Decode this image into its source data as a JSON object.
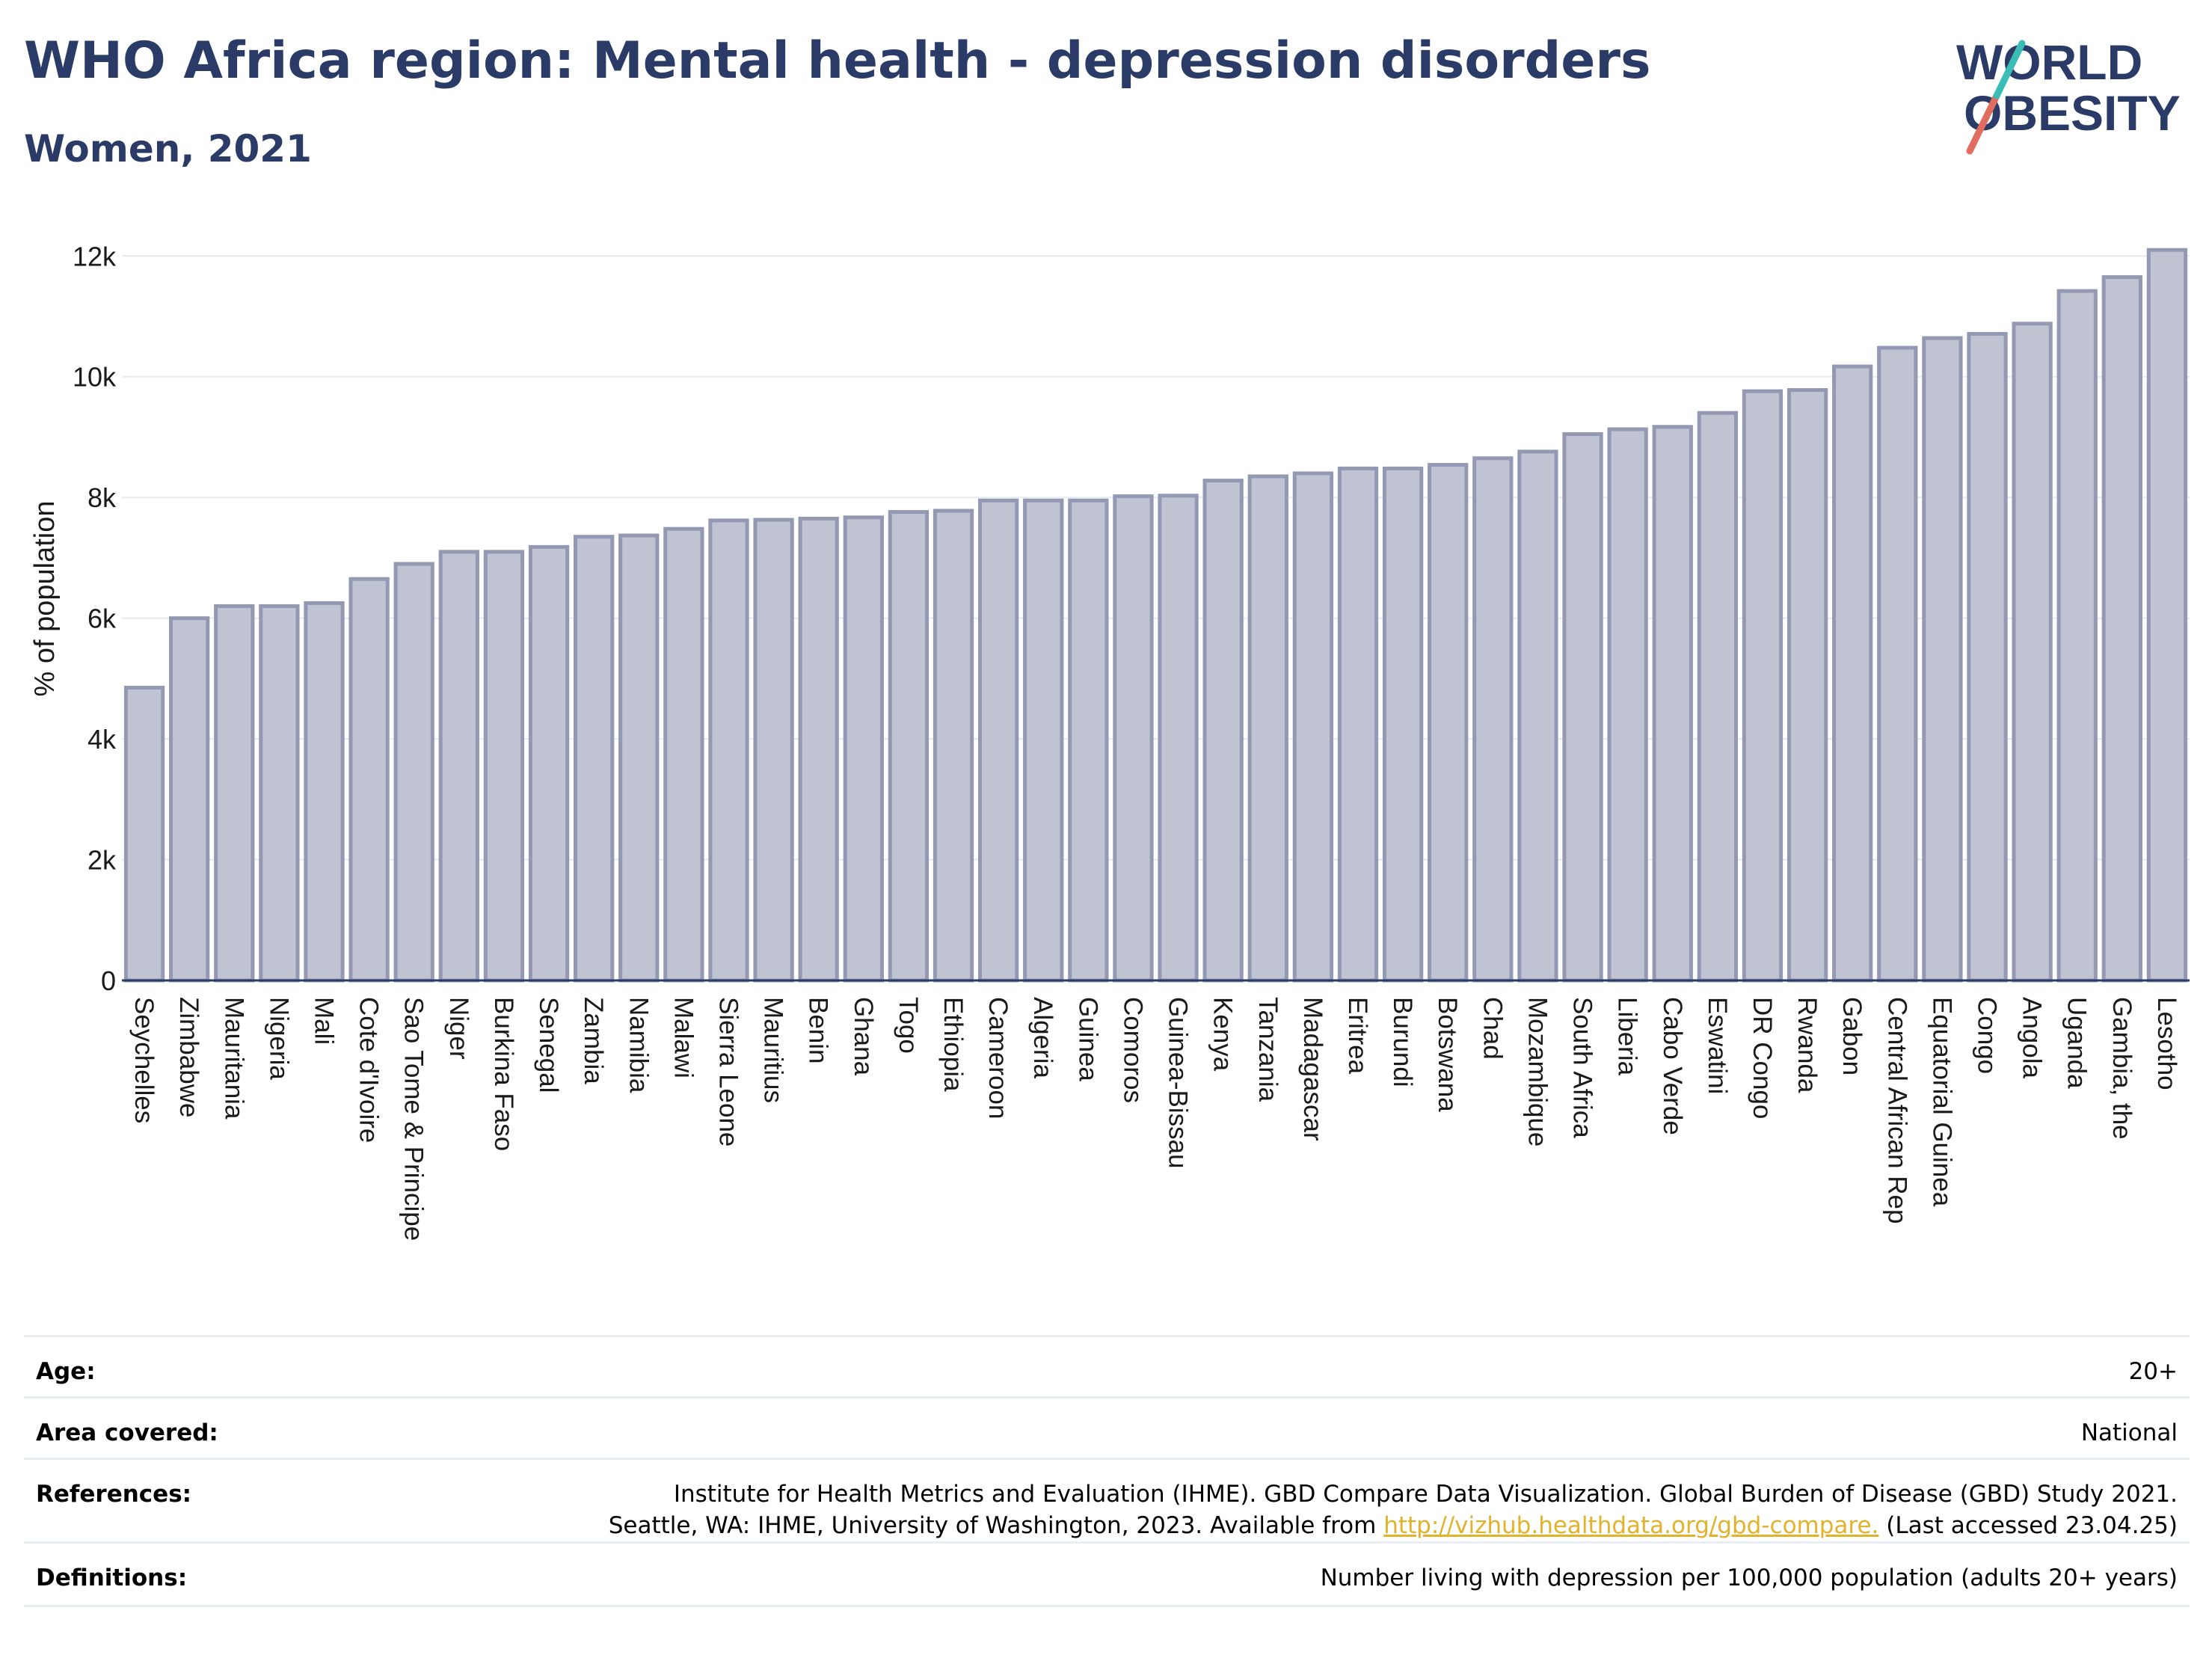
{
  "title": "WHO Africa region: Mental health - depression disorders",
  "subtitle": "Women, 2021",
  "logo": {
    "line1": "WORLD",
    "line2": "OBESITY"
  },
  "chart_data": {
    "type": "bar",
    "ylabel": "% of population",
    "xlabel": "",
    "ylim": [
      0,
      12400
    ],
    "yticks": [
      0,
      2000,
      4000,
      6000,
      8000,
      10000,
      12000
    ],
    "ytick_labels": [
      "0",
      "2k",
      "4k",
      "6k",
      "8k",
      "10k",
      "12k"
    ],
    "grid": true,
    "bar_color": "#bfc3d2",
    "bar_edge_color": "#9499b3",
    "categories": [
      "Seychelles",
      "Zimbabwe",
      "Mauritania",
      "Nigeria",
      "Mali",
      "Cote d'Ivoire",
      "Sao Tome & Principe",
      "Niger",
      "Burkina Faso",
      "Senegal",
      "Zambia",
      "Namibia",
      "Malawi",
      "Sierra Leone",
      "Mauritius",
      "Benin",
      "Ghana",
      "Togo",
      "Ethiopia",
      "Cameroon",
      "Algeria",
      "Guinea",
      "Comoros",
      "Guinea-Bissau",
      "Kenya",
      "Tanzania",
      "Madagascar",
      "Eritrea",
      "Burundi",
      "Botswana",
      "Chad",
      "Mozambique",
      "South Africa",
      "Liberia",
      "Cabo Verde",
      "Eswatini",
      "DR Congo",
      "Rwanda",
      "Gabon",
      "Central African Rep",
      "Equatorial Guinea",
      "Congo",
      "Angola",
      "Uganda",
      "Gambia, the",
      "Lesotho"
    ],
    "values": [
      4850,
      6000,
      6200,
      6200,
      6250,
      6650,
      6900,
      7100,
      7100,
      7180,
      7350,
      7370,
      7480,
      7620,
      7630,
      7650,
      7670,
      7760,
      7780,
      7950,
      7950,
      7950,
      8020,
      8030,
      8280,
      8350,
      8400,
      8480,
      8480,
      8540,
      8650,
      8760,
      9050,
      9130,
      9170,
      9400,
      9760,
      9780,
      10170,
      10480,
      10640,
      10710,
      10880,
      11420,
      11650,
      12100
    ]
  },
  "info": {
    "age_label": "Age:",
    "age_value": "20+",
    "area_label": "Area covered:",
    "area_value": "National",
    "references_label": "References:",
    "references_line1": "Institute for Health Metrics and Evaluation (IHME). GBD Compare Data Visualization. Global Burden of Disease (GBD) Study 2021.",
    "references_line2_prefix": "Seattle, WA: IHME, University of Washington, 2023. Available from ",
    "references_link": "http://vizhub.healthdata.org/gbd-compare.",
    "references_line2_suffix": " (Last accessed 23.04.25)",
    "definitions_label": "Definitions:",
    "definitions_value": "Number living with depression per 100,000 population (adults 20+ years)"
  }
}
